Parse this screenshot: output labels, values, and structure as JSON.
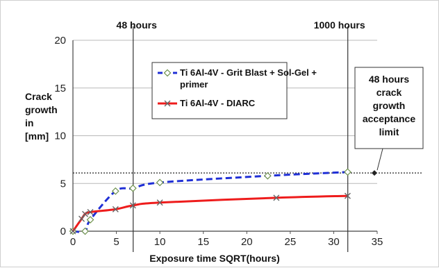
{
  "chart_data": {
    "type": "line",
    "title": "",
    "xlabel": "Exposure time SQRT(hours)",
    "ylabel": [
      "Crack",
      "growth",
      "in",
      "[mm]"
    ],
    "xlim": [
      0,
      35
    ],
    "ylim": [
      0,
      20
    ],
    "xticks": [
      0,
      5,
      10,
      15,
      20,
      25,
      30,
      35
    ],
    "yticks": [
      0,
      5,
      10,
      15,
      20
    ],
    "grid": "horizontal",
    "series": [
      {
        "name": "Ti 6Al-4V - Grit Blast + Sol-Gel + primer",
        "color": "#1f2fd6",
        "style": "dashed",
        "marker": "diamond",
        "x": [
          0,
          1.4,
          2,
          4.9,
          6.9,
          10,
          22.4,
          31.6
        ],
        "y": [
          0,
          0,
          1.2,
          4.2,
          4.5,
          5.1,
          5.8,
          6.2
        ]
      },
      {
        "name": "Ti 6Al-4V - DIARC",
        "color": "#ee1c1c",
        "style": "solid",
        "marker": "x",
        "x": [
          0,
          1,
          1.4,
          2,
          4.9,
          6.9,
          10,
          23.4,
          31.6
        ],
        "y": [
          0,
          1.3,
          1.8,
          2.0,
          2.3,
          2.7,
          3.0,
          3.5,
          3.7
        ]
      }
    ],
    "reference_line": {
      "y": 6.1,
      "style": "dotted"
    },
    "vertical_markers": [
      {
        "x": 6.93,
        "label": "48 hours"
      },
      {
        "x": 31.62,
        "label": "1000 hours"
      }
    ],
    "annotation": [
      "48 hours",
      "crack",
      "growth",
      "acceptance",
      "limit"
    ]
  }
}
